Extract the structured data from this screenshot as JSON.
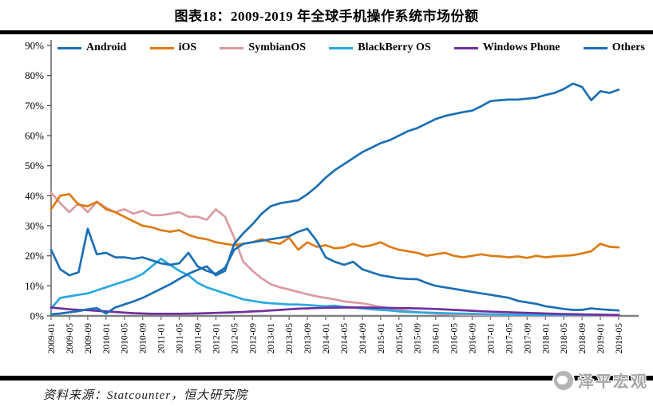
{
  "page": {
    "title": "图表18：2009-2019 年全球手机操作系统市场份额",
    "source_note": "资料来源：Statcounter，恒大研究院",
    "logo_text": "泽平宏观"
  },
  "chart_data": {
    "type": "line",
    "title": "2009-2019 年全球手机操作系统市场份额",
    "xlabel": "",
    "ylabel": "",
    "ylim": [
      0,
      90
    ],
    "y_tick_step": 10,
    "y_tick_suffix": "%",
    "grid": false,
    "legend_position": "top",
    "x_start": "2009-01",
    "x_end": "2019-05",
    "x_sample_step_months": 2,
    "x_tick_labels": [
      "2009-01",
      "2009-05",
      "2009-09",
      "2010-01",
      "2010-05",
      "2010-09",
      "2011-01",
      "2011-05",
      "2011-09",
      "2012-01",
      "2012-05",
      "2012-09",
      "2013-01",
      "2013-05",
      "2013-09",
      "2014-01",
      "2014-05",
      "2014-09",
      "2015-01",
      "2015-05",
      "2015-09",
      "2016-01",
      "2016-05",
      "2016-09",
      "2017-01",
      "2017-05",
      "2017-09",
      "2018-01",
      "2018-05",
      "2018-09",
      "2019-01",
      "2019-05"
    ],
    "axis_color": "#595959",
    "x_axis_color": "#7f7f7f",
    "series": [
      {
        "name": "Android",
        "color": "#1c6fb5",
        "values": [
          0.5,
          0.8,
          1.2,
          1.6,
          2.2,
          2.6,
          0.8,
          2.8,
          3.8,
          4.8,
          6.0,
          7.5,
          9.0,
          10.5,
          12.3,
          14.0,
          15.3,
          16.5,
          13.5,
          15.0,
          24.0,
          27.5,
          30.5,
          34.0,
          36.5,
          37.5,
          38.0,
          38.5,
          40.5,
          43.0,
          46.0,
          48.5,
          50.5,
          52.5,
          54.5,
          56.0,
          57.5,
          58.5,
          60.0,
          61.5,
          62.5,
          64.0,
          65.5,
          66.5,
          67.2,
          67.8,
          68.3,
          69.8,
          71.5,
          71.8,
          72.0,
          72.0,
          72.3,
          72.6,
          73.5,
          74.2,
          75.5,
          77.3,
          76.2,
          71.8,
          74.8,
          74.2,
          75.3
        ]
      },
      {
        "name": "iOS",
        "color": "#dd7b14",
        "values": [
          35.5,
          40.0,
          40.5,
          37.0,
          36.5,
          38.0,
          35.5,
          34.5,
          33.0,
          31.5,
          30.0,
          29.5,
          28.5,
          28.0,
          28.5,
          27.0,
          26.0,
          25.5,
          24.5,
          24.0,
          23.5,
          24.0,
          24.5,
          25.5,
          24.5,
          24.0,
          26.0,
          22.0,
          24.5,
          23.0,
          23.5,
          22.5,
          22.8,
          24.0,
          23.0,
          23.5,
          24.5,
          23.0,
          22.0,
          21.5,
          21.0,
          20.0,
          20.5,
          21.0,
          20.0,
          19.5,
          20.0,
          20.5,
          20.0,
          19.8,
          19.5,
          19.8,
          19.3,
          20.0,
          19.5,
          19.8,
          20.0,
          20.2,
          20.8,
          21.5,
          24.0,
          23.0,
          22.8
        ]
      },
      {
        "name": "SymbianOS",
        "color": "#d99ba1",
        "values": [
          41.0,
          37.5,
          34.5,
          37.5,
          34.5,
          38.0,
          36.0,
          34.5,
          35.5,
          34.0,
          35.0,
          33.5,
          33.5,
          34.0,
          34.5,
          33.0,
          33.0,
          32.0,
          35.5,
          33.0,
          26.0,
          18.0,
          15.0,
          12.5,
          10.5,
          9.5,
          8.8,
          8.0,
          7.2,
          6.5,
          6.0,
          5.5,
          4.8,
          4.5,
          4.2,
          3.6,
          3.0,
          2.5,
          2.0,
          1.6,
          1.2,
          1.0,
          0.8,
          0.6,
          0.45,
          0.38,
          0.32,
          0.28,
          0.25,
          0.22,
          0.2,
          0.18,
          0.16,
          0.15,
          0.14,
          0.13,
          0.12,
          0.11,
          0.1,
          0.1,
          0.1,
          0.1,
          0.1
        ]
      },
      {
        "name": "BlackBerry OS",
        "color": "#29a8e0",
        "values": [
          2.5,
          6.0,
          6.5,
          7.0,
          7.5,
          8.5,
          9.5,
          10.5,
          11.5,
          12.5,
          14.0,
          16.5,
          19.0,
          17.0,
          15.0,
          13.5,
          11.0,
          9.5,
          8.5,
          7.5,
          6.5,
          5.5,
          5.0,
          4.5,
          4.2,
          4.0,
          3.8,
          3.8,
          3.6,
          3.4,
          3.2,
          3.4,
          3.0,
          2.8,
          2.5,
          2.2,
          2.0,
          1.8,
          1.5,
          1.3,
          1.2,
          1.1,
          1.0,
          0.9,
          0.8,
          0.75,
          0.7,
          0.6,
          0.5,
          0.45,
          0.4,
          0.38,
          0.35,
          0.33,
          0.3,
          0.3,
          0.3,
          0.3,
          0.3,
          0.3,
          0.3,
          0.3,
          0.3
        ]
      },
      {
        "name": "Windows Phone",
        "color": "#6f2f9f",
        "values": [
          2.8,
          2.5,
          2.2,
          2.0,
          1.9,
          1.7,
          1.5,
          1.3,
          1.1,
          0.9,
          0.8,
          0.7,
          0.7,
          0.7,
          0.7,
          0.75,
          0.8,
          0.9,
          1.0,
          1.1,
          1.2,
          1.3,
          1.5,
          1.6,
          1.8,
          2.0,
          2.2,
          2.4,
          2.5,
          2.6,
          2.7,
          2.75,
          2.8,
          2.8,
          2.8,
          2.75,
          2.7,
          2.65,
          2.6,
          2.55,
          2.5,
          2.4,
          2.3,
          2.15,
          2.0,
          1.85,
          1.7,
          1.55,
          1.4,
          1.3,
          1.2,
          1.1,
          1.0,
          0.9,
          0.8,
          0.7,
          0.6,
          0.55,
          0.5,
          0.45,
          0.4,
          0.35,
          0.3
        ]
      },
      {
        "name": "Others",
        "color": "#1c6fb5",
        "values": [
          22.0,
          15.5,
          13.5,
          14.5,
          29.0,
          20.5,
          21.0,
          19.5,
          19.5,
          19.0,
          19.5,
          18.5,
          17.5,
          17.0,
          17.5,
          21.0,
          16.5,
          15.0,
          14.0,
          16.0,
          22.0,
          24.0,
          24.5,
          25.0,
          25.5,
          26.0,
          26.5,
          28.0,
          29.0,
          25.0,
          19.5,
          18.0,
          17.0,
          18.0,
          15.5,
          14.5,
          13.5,
          13.0,
          12.5,
          12.3,
          12.2,
          11.0,
          10.0,
          9.5,
          9.0,
          8.5,
          8.0,
          7.5,
          7.0,
          6.5,
          6.0,
          5.0,
          4.5,
          4.0,
          3.2,
          2.8,
          2.3,
          2.0,
          2.0,
          2.5,
          2.2,
          2.0,
          1.8
        ]
      }
    ]
  }
}
